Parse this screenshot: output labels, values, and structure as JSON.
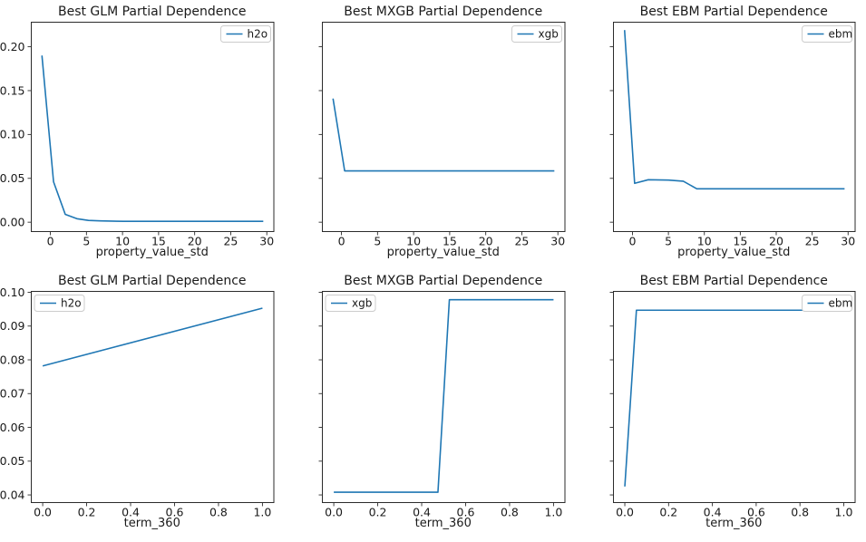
{
  "figure": {
    "background": "#ffffff",
    "line_color": "#1f77b4",
    "spine_color": "#2b2b2b",
    "legend_border_color": "#cccccc",
    "legend_background": "#ffffff"
  },
  "chart_data": [
    {
      "type": "line",
      "title": "Best GLM Partial Dependence",
      "xlabel": "property_value_std",
      "ylabel": "",
      "xlim": [
        -2.71,
        31.04
      ],
      "ylim": [
        -0.0112,
        0.2285
      ],
      "grid": false,
      "xticks": {
        "values": [
          0,
          5,
          10,
          15,
          20,
          25,
          30
        ],
        "labels": [
          "0",
          "5",
          "10",
          "15",
          "20",
          "25",
          "30"
        ]
      },
      "yticks": {
        "values": [
          0.0,
          0.05,
          0.1,
          0.15,
          0.2
        ],
        "labels": [
          "0.00",
          "0.05",
          "0.10",
          "0.15",
          "0.20"
        ],
        "show_labels": true
      },
      "legend": {
        "label": "h2o",
        "loc": "upper-right"
      },
      "series": [
        {
          "name": "h2o",
          "color": "#1f77b4",
          "points": [
            [
              -1.17,
              0.19
            ],
            [
              0.44,
              0.046
            ],
            [
              2.06,
              0.009
            ],
            [
              3.67,
              0.004
            ],
            [
              5.28,
              0.002
            ],
            [
              6.9,
              0.0015
            ],
            [
              10.12,
              0.001
            ],
            [
              29.51,
              0.001
            ]
          ]
        }
      ]
    },
    {
      "type": "line",
      "title": "Best MXGB Partial Dependence",
      "xlabel": "property_value_std",
      "ylabel": "",
      "xlim": [
        -2.71,
        31.04
      ],
      "ylim": [
        -0.0112,
        0.2285
      ],
      "grid": false,
      "xticks": {
        "values": [
          0,
          5,
          10,
          15,
          20,
          25,
          30
        ],
        "labels": [
          "0",
          "5",
          "10",
          "15",
          "20",
          "25",
          "30"
        ]
      },
      "yticks": {
        "values": [
          0.0,
          0.05,
          0.1,
          0.15,
          0.2
        ],
        "labels": [
          "0.00",
          "0.05",
          "0.10",
          "0.15",
          "0.20"
        ],
        "show_labels": false
      },
      "legend": {
        "label": "xgb",
        "loc": "upper-right"
      },
      "series": [
        {
          "name": "xgb",
          "color": "#1f77b4",
          "points": [
            [
              -1.17,
              0.141
            ],
            [
              0.44,
              0.0585
            ],
            [
              29.51,
              0.0585
            ]
          ]
        }
      ]
    },
    {
      "type": "line",
      "title": "Best EBM Partial Dependence",
      "xlabel": "property_value_std",
      "ylabel": "",
      "xlim": [
        -2.71,
        31.04
      ],
      "ylim": [
        -0.0112,
        0.2285
      ],
      "grid": false,
      "xticks": {
        "values": [
          0,
          5,
          10,
          15,
          20,
          25,
          30
        ],
        "labels": [
          "0",
          "5",
          "10",
          "15",
          "20",
          "25",
          "30"
        ]
      },
      "yticks": {
        "values": [
          0.0,
          0.05,
          0.1,
          0.15,
          0.2
        ],
        "labels": [
          "0.00",
          "0.05",
          "0.10",
          "0.15",
          "0.20"
        ],
        "show_labels": false
      },
      "legend": {
        "label": "ebm",
        "loc": "upper-right"
      },
      "series": [
        {
          "name": "ebm",
          "color": "#1f77b4",
          "points": [
            [
              -1.1,
              0.219
            ],
            [
              0.3,
              0.0443
            ],
            [
              2.2,
              0.0484
            ],
            [
              5.0,
              0.048
            ],
            [
              7.07,
              0.0467
            ],
            [
              8.95,
              0.0381
            ],
            [
              29.51,
              0.0381
            ]
          ]
        }
      ]
    },
    {
      "type": "line",
      "title": "Best GLM Partial Dependence",
      "xlabel": "term_360",
      "ylabel": "",
      "xlim": [
        -0.054,
        1.054
      ],
      "ylim": [
        0.0376,
        0.1004
      ],
      "grid": false,
      "xticks": {
        "values": [
          0.0,
          0.2,
          0.4,
          0.6,
          0.8,
          1.0
        ],
        "labels": [
          "0.0",
          "0.2",
          "0.4",
          "0.6",
          "0.8",
          "1.0"
        ]
      },
      "yticks": {
        "values": [
          0.04,
          0.05,
          0.06,
          0.07,
          0.08,
          0.09,
          0.1
        ],
        "labels": [
          "0.04",
          "0.05",
          "0.06",
          "0.07",
          "0.08",
          "0.09",
          "0.10"
        ],
        "show_labels": true
      },
      "legend": {
        "label": "h2o",
        "loc": "upper-left"
      },
      "series": [
        {
          "name": "h2o",
          "color": "#1f77b4",
          "points": [
            [
              0.0,
              0.0782
            ],
            [
              1.0,
              0.0953
            ]
          ]
        }
      ]
    },
    {
      "type": "line",
      "title": "Best MXGB Partial Dependence",
      "xlabel": "term_360",
      "ylabel": "",
      "xlim": [
        -0.054,
        1.054
      ],
      "ylim": [
        0.0376,
        0.1004
      ],
      "grid": false,
      "xticks": {
        "values": [
          0.0,
          0.2,
          0.4,
          0.6,
          0.8,
          1.0
        ],
        "labels": [
          "0.0",
          "0.2",
          "0.4",
          "0.6",
          "0.8",
          "1.0"
        ]
      },
      "yticks": {
        "values": [
          0.04,
          0.05,
          0.06,
          0.07,
          0.08,
          0.09,
          0.1
        ],
        "labels": [
          "0.04",
          "0.05",
          "0.06",
          "0.07",
          "0.08",
          "0.09",
          "0.10"
        ],
        "show_labels": false
      },
      "legend": {
        "label": "xgb",
        "loc": "upper-left"
      },
      "series": [
        {
          "name": "xgb",
          "color": "#1f77b4",
          "points": [
            [
              0.0,
              0.0408
            ],
            [
              0.474,
              0.0408
            ],
            [
              0.526,
              0.0978
            ],
            [
              1.0,
              0.0978
            ]
          ]
        }
      ]
    },
    {
      "type": "line",
      "title": "Best EBM Partial Dependence",
      "xlabel": "term_360",
      "ylabel": "",
      "xlim": [
        -0.054,
        1.054
      ],
      "ylim": [
        0.0376,
        0.1004
      ],
      "grid": false,
      "xticks": {
        "values": [
          0.0,
          0.2,
          0.4,
          0.6,
          0.8,
          1.0
        ],
        "labels": [
          "0.0",
          "0.2",
          "0.4",
          "0.6",
          "0.8",
          "1.0"
        ]
      },
      "yticks": {
        "values": [
          0.04,
          0.05,
          0.06,
          0.07,
          0.08,
          0.09,
          0.1
        ],
        "labels": [
          "0.04",
          "0.05",
          "0.06",
          "0.07",
          "0.08",
          "0.09",
          "0.10"
        ],
        "show_labels": false
      },
      "legend": {
        "label": "ebm",
        "loc": "upper-right"
      },
      "series": [
        {
          "name": "ebm",
          "color": "#1f77b4",
          "points": [
            [
              0.0,
              0.0425
            ],
            [
              0.053,
              0.0947
            ],
            [
              1.0,
              0.0947
            ]
          ]
        }
      ]
    }
  ]
}
